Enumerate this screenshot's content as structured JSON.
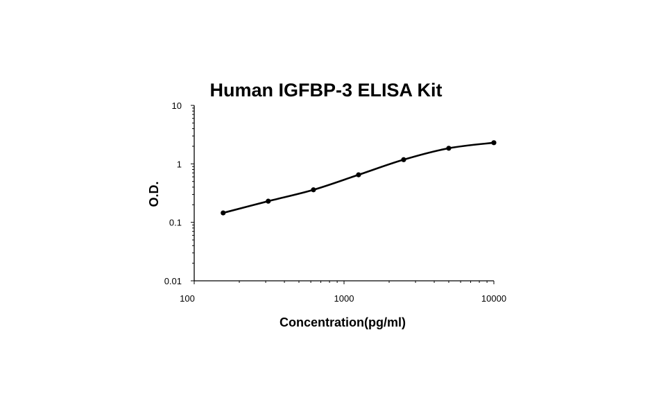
{
  "chart_data": {
    "type": "scatter",
    "title": "Human IGFBP-3 ELISA Kit",
    "xlabel": "Concentration(pg/ml)",
    "ylabel": "O.D.",
    "x_scale": "log",
    "y_scale": "log",
    "xlim": [
      100,
      10000
    ],
    "ylim": [
      0.01,
      10
    ],
    "x_ticks": [
      100,
      1000,
      10000
    ],
    "x_tick_labels": [
      "100",
      "1000",
      "10000"
    ],
    "y_ticks": [
      0.01,
      0.1,
      1,
      10
    ],
    "y_tick_labels": [
      "0.01",
      "0.1",
      "1",
      "10"
    ],
    "grid": false,
    "legend": "none",
    "line": "smooth",
    "series": [
      {
        "x": [
          156,
          312,
          625,
          1250,
          2500,
          5000,
          10000
        ],
        "y": [
          0.145,
          0.23,
          0.36,
          0.65,
          1.18,
          1.85,
          2.3
        ]
      }
    ]
  }
}
